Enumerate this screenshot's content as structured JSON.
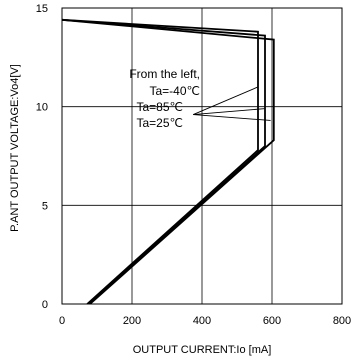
{
  "chart_data": {
    "type": "line",
    "xlabel": "OUTPUT CURRENT:Io [mA]",
    "ylabel": "P.ANT OUTPUT VOLTAGE:Vo4[V]",
    "xlim": [
      0,
      800
    ],
    "ylim": [
      0,
      15
    ],
    "x_ticks": [
      "0",
      "200",
      "400",
      "600",
      "800"
    ],
    "y_ticks": [
      "0",
      "5",
      "10",
      "15"
    ],
    "grid": true,
    "annotation": {
      "lines": [
        "From the left,",
        "Ta=-40℃",
        "Ta=85℃",
        "Ta=25℃"
      ],
      "pointer_origin": [
        375,
        9.6
      ],
      "pointer_targets": [
        [
          560,
          11.0
        ],
        [
          578,
          9.9
        ],
        [
          596,
          9.3
        ]
      ]
    },
    "series": [
      {
        "points": [
          [
            0,
            14.4
          ],
          [
            560,
            13.8
          ],
          [
            560,
            7.8
          ],
          [
            72,
            0
          ]
        ]
      },
      {
        "points": [
          [
            0,
            14.4
          ],
          [
            580,
            13.6
          ],
          [
            580,
            8.0
          ],
          [
            76,
            0
          ]
        ]
      },
      {
        "points": [
          [
            0,
            14.4
          ],
          [
            605,
            13.4
          ],
          [
            605,
            8.3
          ],
          [
            80,
            0
          ]
        ]
      }
    ],
    "line_color": "#000000"
  }
}
